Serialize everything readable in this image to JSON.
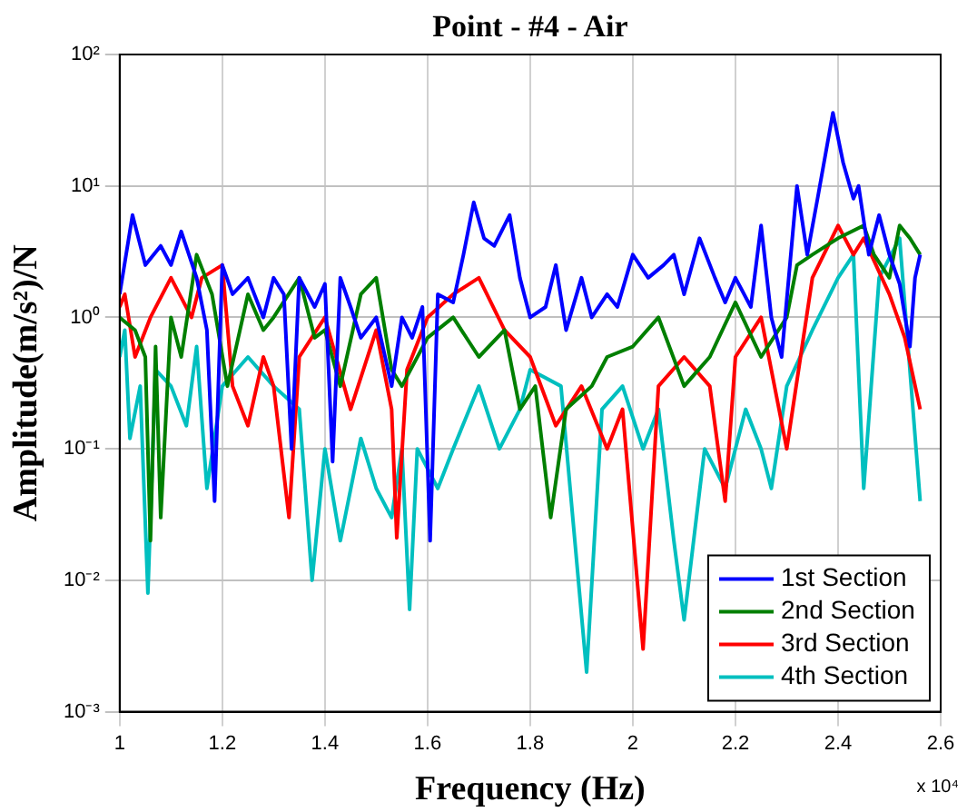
{
  "chart_data": {
    "type": "line",
    "title": "Point - #4 - Air",
    "xlabel": "Frequency (Hz)",
    "ylabel": "Amplitude(m/s²)/N",
    "log": "y",
    "grid": true,
    "legend": "bottom right",
    "marker": "none",
    "line_style": "solid",
    "xlim": [
      1,
      2.6
    ],
    "xticks": [
      1,
      1.2,
      1.4,
      1.6,
      1.8,
      2,
      2.2,
      2.4,
      2.6
    ],
    "ylim": [
      0.001,
      100
    ],
    "yticks": [
      {
        "value": 0.001,
        "label": "10⁻³"
      },
      {
        "value": 0.01,
        "label": "10⁻²"
      },
      {
        "value": 0.1,
        "label": "10⁻¹"
      },
      {
        "value": 1,
        "label": "10⁰"
      },
      {
        "value": 10,
        "label": "10¹"
      },
      {
        "value": 100,
        "label": "10²"
      }
    ],
    "annotations": [
      "x 10⁴"
    ],
    "series": [
      {
        "name": "1st Section",
        "color": "#0000ff",
        "x": [
          1,
          1.025,
          1.05,
          1.08,
          1.1,
          1.12,
          1.15,
          1.17,
          1.185,
          1.2,
          1.22,
          1.25,
          1.28,
          1.3,
          1.32,
          1.335,
          1.35,
          1.38,
          1.4,
          1.415,
          1.43,
          1.45,
          1.47,
          1.5,
          1.53,
          1.55,
          1.57,
          1.59,
          1.605,
          1.62,
          1.65,
          1.67,
          1.69,
          1.71,
          1.73,
          1.76,
          1.78,
          1.8,
          1.83,
          1.85,
          1.87,
          1.9,
          1.92,
          1.95,
          1.97,
          2,
          2.03,
          2.06,
          2.08,
          2.1,
          2.13,
          2.16,
          2.18,
          2.2,
          2.23,
          2.25,
          2.27,
          2.29,
          2.32,
          2.34,
          2.36,
          2.39,
          2.41,
          2.43,
          2.44,
          2.46,
          2.48,
          2.5,
          2.52,
          2.54,
          2.55,
          2.56
        ],
        "values": [
          1.5,
          6,
          2.5,
          3.5,
          2.5,
          4.5,
          2,
          0.8,
          0.04,
          2.5,
          1.5,
          2,
          1,
          2,
          1.5,
          0.1,
          2,
          1.2,
          1.8,
          0.08,
          2,
          1.2,
          0.7,
          1,
          0.3,
          1,
          0.7,
          1.2,
          0.02,
          1.5,
          1.3,
          3,
          7.5,
          4,
          3.5,
          6,
          2,
          1,
          1.2,
          2.5,
          0.8,
          2,
          1,
          1.5,
          1.2,
          3,
          2,
          2.5,
          3,
          1.5,
          4,
          2,
          1.3,
          2,
          1.2,
          5,
          1,
          0.5,
          10,
          3,
          8,
          36,
          15,
          8,
          10,
          3,
          6,
          3,
          1.8,
          0.6,
          2,
          3
        ]
      },
      {
        "name": "2nd Section",
        "color": "#007f00",
        "x": [
          1,
          1.03,
          1.05,
          1.06,
          1.07,
          1.08,
          1.1,
          1.12,
          1.15,
          1.18,
          1.21,
          1.25,
          1.28,
          1.3,
          1.35,
          1.38,
          1.4,
          1.43,
          1.47,
          1.5,
          1.53,
          1.55,
          1.6,
          1.65,
          1.7,
          1.75,
          1.78,
          1.81,
          1.84,
          1.87,
          1.92,
          1.95,
          2,
          2.05,
          2.1,
          2.15,
          2.2,
          2.25,
          2.3,
          2.32,
          2.35,
          2.4,
          2.45,
          2.47,
          2.5,
          2.52,
          2.54,
          2.56
        ],
        "values": [
          1,
          0.8,
          0.5,
          0.02,
          0.6,
          0.03,
          1,
          0.5,
          3,
          1.5,
          0.3,
          1.5,
          0.8,
          1,
          2,
          0.7,
          0.8,
          0.3,
          1.5,
          2,
          0.4,
          0.3,
          0.7,
          1,
          0.5,
          0.8,
          0.2,
          0.3,
          0.03,
          0.2,
          0.3,
          0.5,
          0.6,
          1,
          0.3,
          0.5,
          1.3,
          0.5,
          1,
          2.5,
          3,
          4,
          5,
          3,
          2,
          5,
          4,
          3
        ]
      },
      {
        "name": "3rd Section",
        "color": "#ff0000",
        "x": [
          1,
          1.01,
          1.03,
          1.06,
          1.1,
          1.14,
          1.16,
          1.2,
          1.22,
          1.25,
          1.28,
          1.3,
          1.33,
          1.35,
          1.4,
          1.45,
          1.5,
          1.53,
          1.54,
          1.56,
          1.6,
          1.65,
          1.7,
          1.75,
          1.8,
          1.85,
          1.9,
          1.95,
          1.98,
          2.02,
          2.05,
          2.1,
          2.15,
          2.18,
          2.2,
          2.25,
          2.3,
          2.35,
          2.4,
          2.43,
          2.45,
          2.5,
          2.53,
          2.56
        ],
        "values": [
          1.2,
          1.5,
          0.5,
          1,
          2,
          1,
          2,
          2.5,
          0.3,
          0.15,
          0.5,
          0.3,
          0.03,
          0.5,
          1,
          0.2,
          0.8,
          0.2,
          0.021,
          0.4,
          1,
          1.5,
          2,
          0.8,
          0.5,
          0.15,
          0.3,
          0.1,
          0.2,
          0.003,
          0.3,
          0.5,
          0.3,
          0.04,
          0.5,
          1,
          0.1,
          2,
          5,
          3,
          4,
          1.5,
          0.7,
          0.2
        ]
      },
      {
        "name": "4th Section",
        "color": "#00bfbf",
        "x": [
          1,
          1.01,
          1.02,
          1.04,
          1.055,
          1.07,
          1.1,
          1.13,
          1.15,
          1.17,
          1.2,
          1.25,
          1.3,
          1.35,
          1.375,
          1.4,
          1.43,
          1.47,
          1.5,
          1.53,
          1.55,
          1.565,
          1.58,
          1.62,
          1.65,
          1.7,
          1.74,
          1.78,
          1.8,
          1.86,
          1.91,
          1.94,
          1.98,
          2.02,
          2.05,
          2.08,
          2.1,
          2.14,
          2.18,
          2.22,
          2.25,
          2.27,
          2.3,
          2.35,
          2.4,
          2.43,
          2.45,
          2.48,
          2.52,
          2.56
        ],
        "values": [
          0.5,
          0.8,
          0.12,
          0.3,
          0.008,
          0.4,
          0.3,
          0.15,
          0.6,
          0.05,
          0.3,
          0.5,
          0.3,
          0.2,
          0.01,
          0.1,
          0.02,
          0.12,
          0.05,
          0.03,
          0.1,
          0.006,
          0.1,
          0.05,
          0.1,
          0.3,
          0.1,
          0.2,
          0.4,
          0.3,
          0.002,
          0.2,
          0.3,
          0.1,
          0.2,
          0.02,
          0.005,
          0.1,
          0.05,
          0.2,
          0.1,
          0.05,
          0.3,
          0.8,
          2,
          3,
          0.05,
          2,
          4,
          0.04
        ]
      }
    ]
  }
}
